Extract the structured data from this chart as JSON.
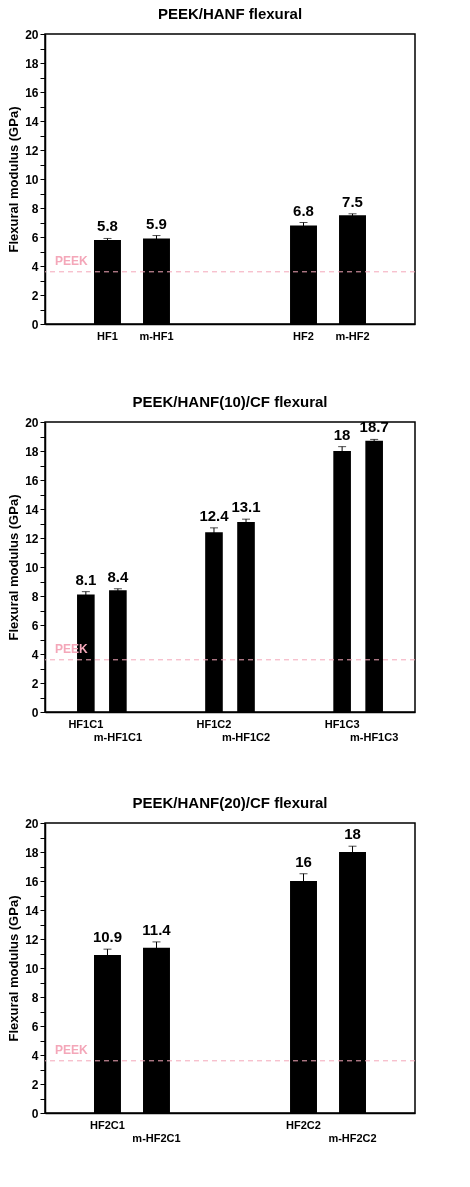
{
  "chart_data": [
    {
      "type": "bar",
      "title": "PEEK/HANF flexural",
      "ylabel": "Flexural modulus (GPa)",
      "categories": [
        null,
        "HF1",
        "m-HF1",
        null,
        null,
        "HF2",
        "m-HF2",
        null
      ],
      "values": [
        null,
        5.8,
        5.9,
        null,
        null,
        6.8,
        7.5,
        null
      ],
      "errors": [
        null,
        0.1,
        0.2,
        null,
        null,
        0.2,
        0.1,
        null
      ],
      "color": "#000000",
      "data_labels": true,
      "ylim": [
        0,
        20
      ],
      "yticks": [
        0,
        {
          "value": 1,
          "label": null
        },
        2,
        {
          "value": 3,
          "label": null
        },
        4,
        {
          "value": 5,
          "label": null
        },
        6,
        {
          "value": 7,
          "label": null
        },
        8,
        {
          "value": 9,
          "label": null
        },
        10,
        {
          "value": 11,
          "label": null
        },
        12,
        {
          "value": 13,
          "label": null
        },
        14,
        {
          "value": 15,
          "label": null
        },
        16,
        {
          "value": 17,
          "label": null
        },
        18,
        {
          "value": 19,
          "label": null
        },
        20
      ],
      "ref_lines": [
        {
          "axis": "y",
          "value": 3.6,
          "label": "PEEK",
          "color": "#f4a7b9",
          "line_style": "dashed"
        }
      ]
    },
    {
      "type": "bar",
      "title": "PEEK/HANF(10)/CF flexural",
      "ylabel": "Flexural modulus (GPa)",
      "categories": [
        null,
        "HF1C1",
        "m-HF1C1",
        null,
        null,
        "HF1C2",
        "m-HF1C2",
        null,
        null,
        "HF1C3",
        "m-HF1C3",
        null
      ],
      "values": [
        null,
        8.1,
        8.4,
        null,
        null,
        12.4,
        13.1,
        null,
        null,
        18,
        18.7,
        null
      ],
      "errors": [
        null,
        0.2,
        0.1,
        null,
        null,
        0.3,
        0.2,
        null,
        null,
        0.3,
        0.1,
        null
      ],
      "color": "#000000",
      "data_labels": true,
      "ylim": [
        0,
        20
      ],
      "yticks": [
        0,
        {
          "value": 1,
          "label": null
        },
        2,
        {
          "value": 3,
          "label": null
        },
        4,
        {
          "value": 5,
          "label": null
        },
        6,
        {
          "value": 7,
          "label": null
        },
        8,
        {
          "value": 9,
          "label": null
        },
        10,
        {
          "value": 11,
          "label": null
        },
        12,
        {
          "value": 13,
          "label": null
        },
        14,
        {
          "value": 15,
          "label": null
        },
        16,
        {
          "value": 17,
          "label": null
        },
        18,
        {
          "value": 19,
          "label": null
        },
        20
      ],
      "ref_lines": [
        {
          "axis": "y",
          "value": 3.6,
          "label": "PEEK",
          "color": "#f4a7b9",
          "line_style": "dashed"
        }
      ]
    },
    {
      "type": "bar",
      "title": "PEEK/HANF(20)/CF flexural",
      "ylabel": "Flexural modulus (GPa)",
      "categories": [
        null,
        "HF2C1",
        "m-HF2C1",
        null,
        null,
        "HF2C2",
        "m-HF2C2",
        null
      ],
      "values": [
        null,
        10.9,
        11.4,
        null,
        null,
        16,
        18,
        null
      ],
      "errors": [
        null,
        0.4,
        0.4,
        null,
        null,
        0.5,
        0.4,
        null
      ],
      "color": "#000000",
      "data_labels": true,
      "ylim": [
        0,
        20
      ],
      "yticks": [
        0,
        {
          "value": 1,
          "label": null
        },
        2,
        {
          "value": 3,
          "label": null
        },
        4,
        {
          "value": 5,
          "label": null
        },
        6,
        {
          "value": 7,
          "label": null
        },
        8,
        {
          "value": 9,
          "label": null
        },
        10,
        {
          "value": 11,
          "label": null
        },
        12,
        {
          "value": 13,
          "label": null
        },
        14,
        {
          "value": 15,
          "label": null
        },
        16,
        {
          "value": 17,
          "label": null
        },
        18,
        {
          "value": 19,
          "label": null
        },
        20
      ],
      "ref_lines": [
        {
          "axis": "y",
          "value": 3.6,
          "label": "PEEK",
          "color": "#f4a7b9",
          "line_style": "dashed"
        }
      ]
    }
  ]
}
